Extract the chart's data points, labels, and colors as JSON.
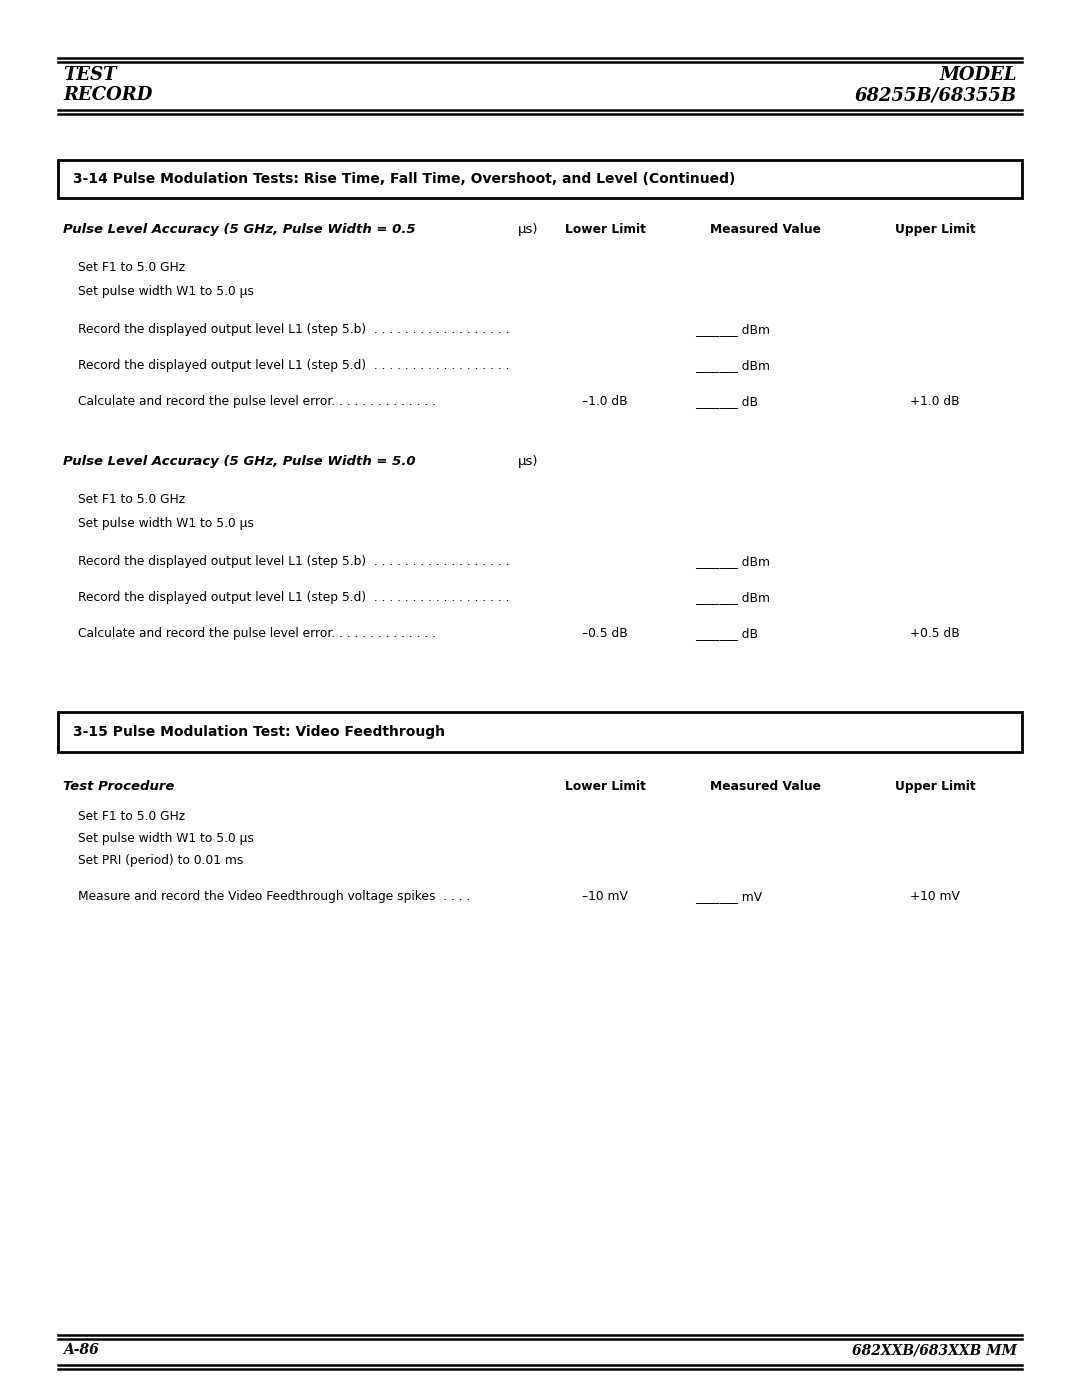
{
  "page_width": 10.8,
  "page_height": 13.97,
  "bg_color": "#ffffff",
  "header": {
    "left_line1": "TEST",
    "left_line2": "RECORD",
    "right_line1": "MODEL",
    "right_line2": "68255B/68355B"
  },
  "footer": {
    "left": "A-86",
    "right": "682XXB/683XXB MM"
  },
  "section1_title": "3-14 Pulse Modulation Tests: Rise Time, Fall Time, Overshoot, and Level (Continued)",
  "section2_title": "3-15 Pulse Modulation Test: Video Feedthrough",
  "col_lower": "Lower Limit",
  "col_measured": "Measured Value",
  "col_upper": "Upper Limit"
}
